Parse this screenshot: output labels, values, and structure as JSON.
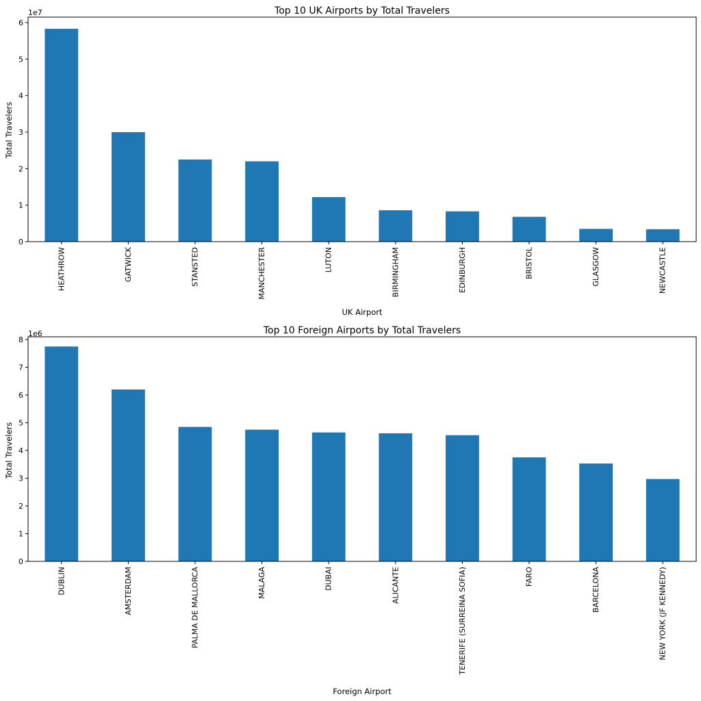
{
  "chart_data": [
    {
      "type": "bar",
      "title": "Top 10 UK Airports by Total Travelers",
      "xlabel": "UK Airport",
      "ylabel": "Total Travelers",
      "multiplier_label": "1e7",
      "scale": 10000000,
      "color": "#1f77b4",
      "categories": [
        "HEATHROW",
        "GATWICK",
        "STANSTED",
        "MANCHESTER",
        "LUTON",
        "BIRMINGHAM",
        "EDINBURGH",
        "BRISTOL",
        "GLASGOW",
        "NEWCASTLE"
      ],
      "values": [
        58300000,
        30000000,
        22500000,
        22000000,
        12200000,
        8600000,
        8300000,
        6800000,
        3500000,
        3400000
      ],
      "ylim": [
        0,
        6.15
      ],
      "yticks": [
        0,
        1,
        2,
        3,
        4,
        5,
        6
      ],
      "ytick_labels": [
        "0",
        "1",
        "2",
        "3",
        "4",
        "5",
        "6"
      ],
      "grid": false,
      "legend": "none"
    },
    {
      "type": "bar",
      "title": "Top 10 Foreign Airports by Total Travelers",
      "xlabel": "Foreign Airport",
      "ylabel": "Total Travelers",
      "multiplier_label": "1e6",
      "scale": 1000000,
      "color": "#1f77b4",
      "categories": [
        "DUBLIN",
        "AMSTERDAM",
        "PALMA DE MALLORCA",
        "MALAGA",
        "DUBAI",
        "ALICANTE",
        "TENERIFE (SURREINA SOFIA)",
        "FARO",
        "BARCELONA",
        "NEW YORK (JF KENNEDY)"
      ],
      "values": [
        7750000,
        6200000,
        4850000,
        4750000,
        4650000,
        4620000,
        4550000,
        3750000,
        3530000,
        2970000
      ],
      "ylim": [
        0,
        8.1
      ],
      "yticks": [
        0,
        1,
        2,
        3,
        4,
        5,
        6,
        7,
        8
      ],
      "ytick_labels": [
        "0",
        "1",
        "2",
        "3",
        "4",
        "5",
        "6",
        "7",
        "8"
      ],
      "grid": false,
      "legend": "none"
    }
  ]
}
